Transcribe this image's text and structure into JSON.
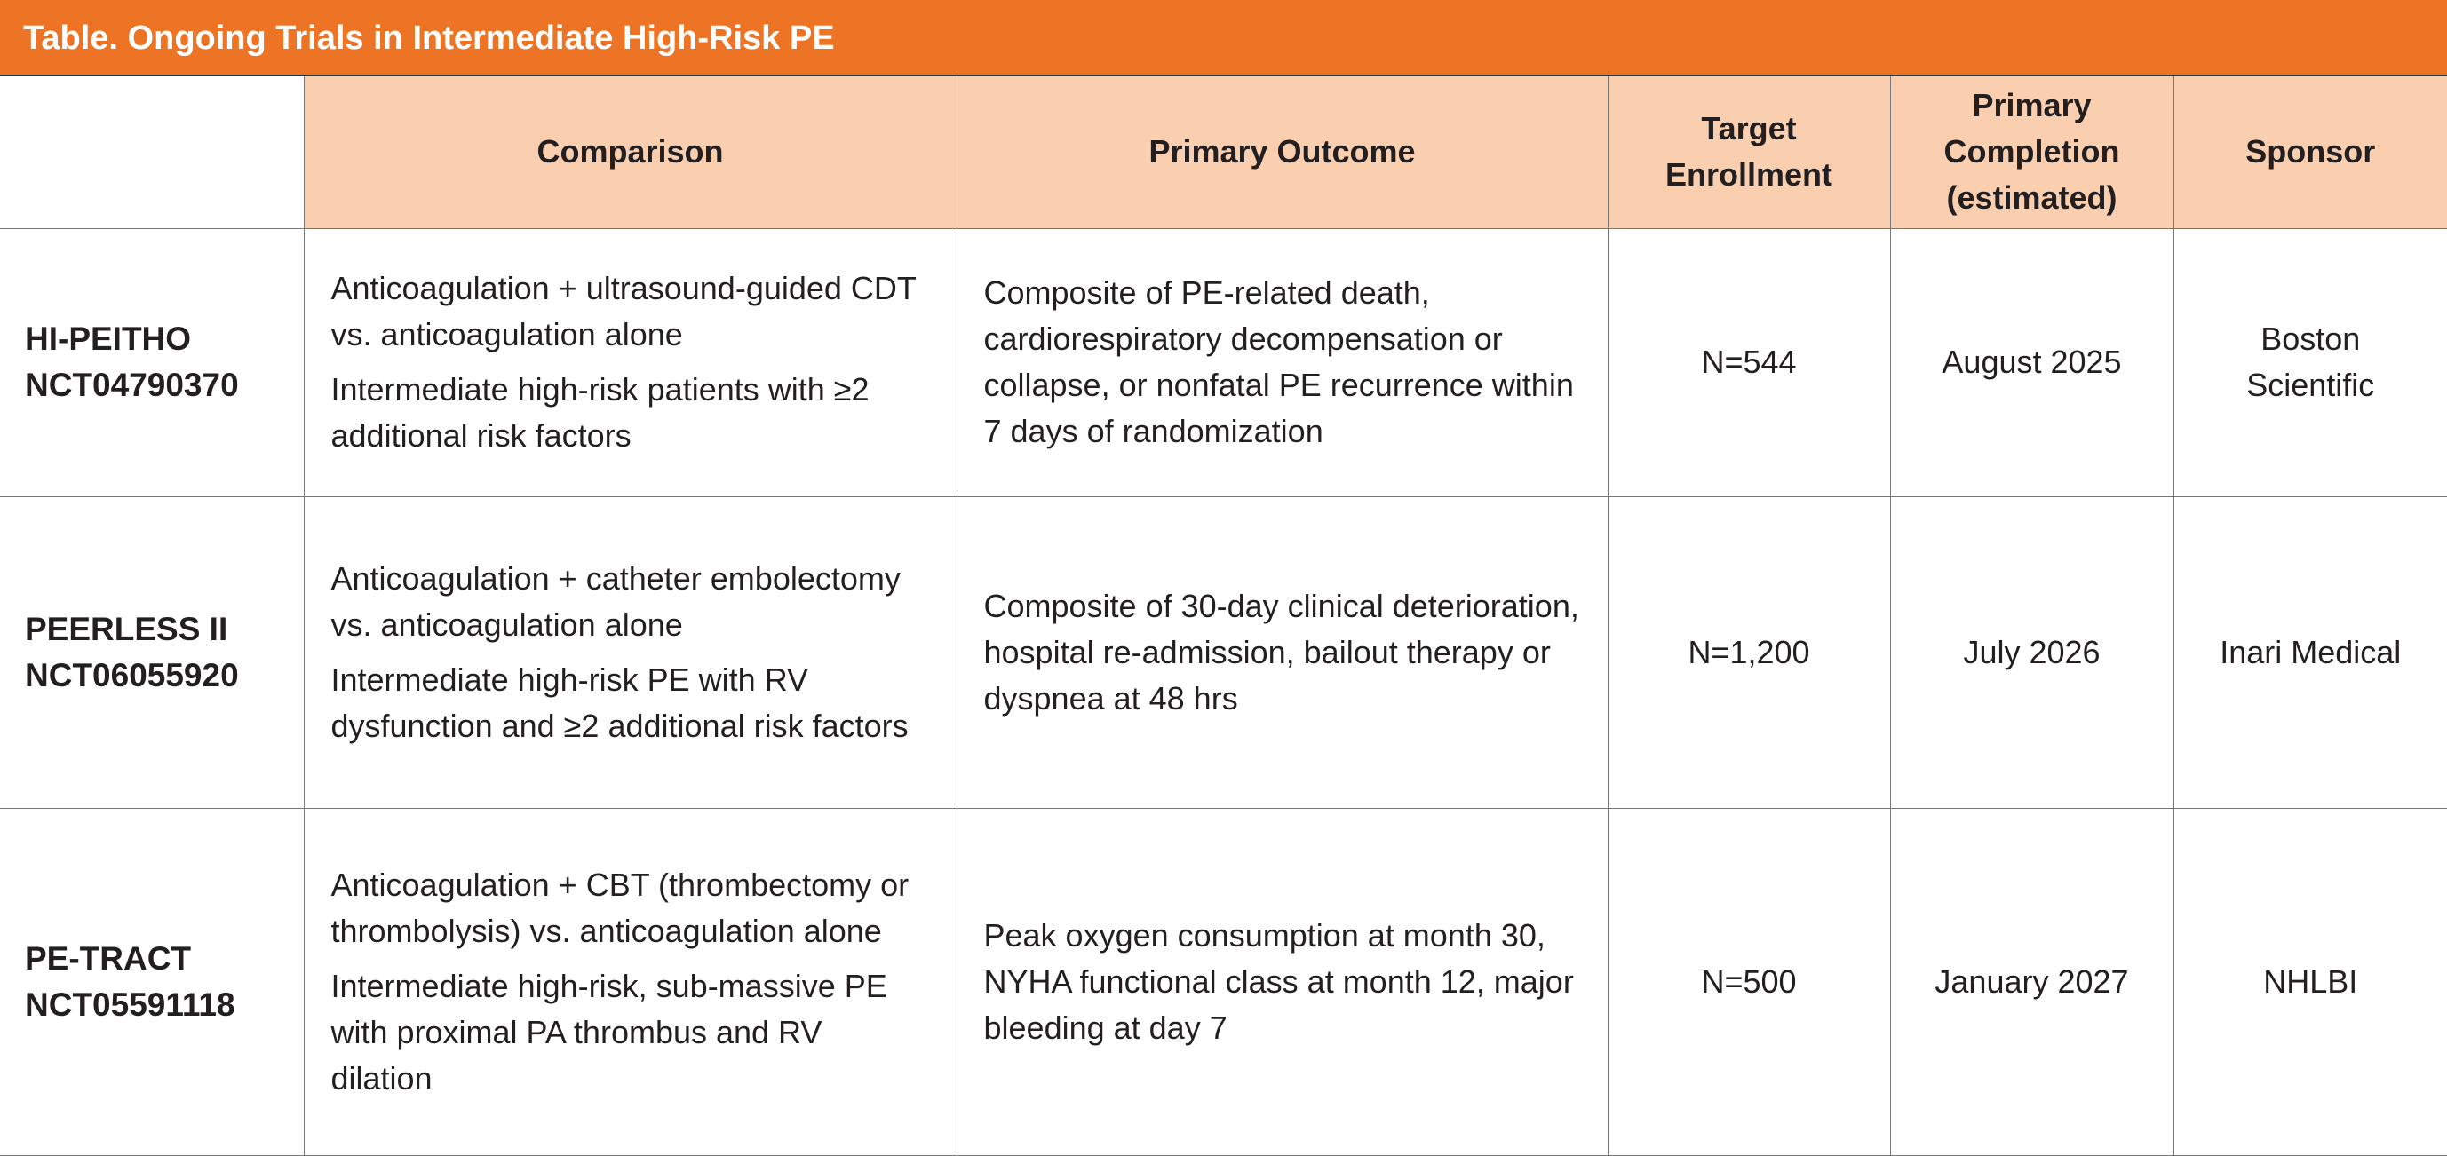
{
  "title": "Table. Ongoing Trials in Intermediate High-Risk PE",
  "colors": {
    "title_bar": "#ee7425",
    "header_bg": "#f9cfb0"
  },
  "headers": [
    "",
    "Comparison",
    "Primary Outcome",
    "Target Enrollment",
    "Primary Completion (estimated)",
    "Sponsor"
  ],
  "rows": [
    {
      "name": "HI-PEITHO",
      "nct": "NCT04790370",
      "comparison": [
        "Anticoagulation + ultrasound-guided CDT vs. anticoagulation alone",
        "Intermediate high-risk patients with ≥2 additional risk factors"
      ],
      "outcome": "Composite of PE-related death, cardiorespiratory decompensation or collapse, or nonfatal PE recurrence within 7 days of randomization",
      "enrollment": "N=544",
      "completion": "August 2025",
      "sponsor": "Boston Scientific"
    },
    {
      "name": "PEERLESS II",
      "nct": "NCT06055920",
      "comparison": [
        "Anticoagulation + catheter embolectomy vs. anticoagulation alone",
        "Intermediate high-risk PE with RV dysfunction and ≥2 additional risk factors"
      ],
      "outcome": "Composite of 30-day clinical deterioration, hospital re-admission, bailout therapy or dyspnea at 48 hrs",
      "enrollment": "N=1,200",
      "completion": "July 2026",
      "sponsor": "Inari Medical"
    },
    {
      "name": "PE-TRACT",
      "nct": "NCT05591118",
      "comparison": [
        "Anticoagulation + CBT (thrombectomy or thrombolysis) vs. anticoagulation alone",
        "Intermediate high-risk, sub-massive PE with proximal PA thrombus and RV dilation"
      ],
      "outcome": "Peak oxygen consumption at month 30, NYHA functional class at month 12, major bleeding at day 7",
      "enrollment": "N=500",
      "completion": "January 2027",
      "sponsor": "NHLBI"
    }
  ]
}
